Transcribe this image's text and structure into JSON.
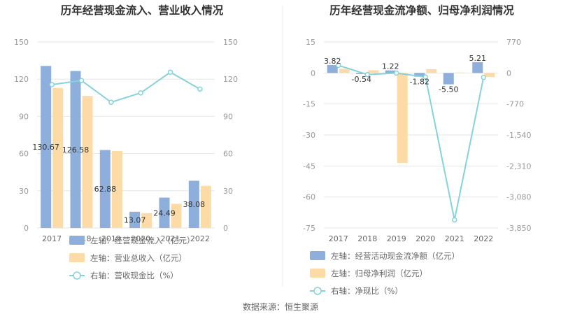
{
  "source": "数据来源：恒生聚源",
  "chart_data": [
    {
      "type": "bar",
      "title": "历年经营现金流入、营业收入情况",
      "categories": [
        "2017",
        "2018",
        "2019",
        "2020",
        "2021",
        "2022"
      ],
      "left_axis": {
        "ylim": [
          0,
          150
        ],
        "ticks": [
          "0",
          "30",
          "60",
          "90",
          "120",
          "150"
        ]
      },
      "right_axis": {
        "ylim": [
          0,
          150
        ],
        "ticks": [
          "0",
          "30",
          "60",
          "90",
          "120",
          "150"
        ]
      },
      "series": [
        {
          "name": "左轴：经营现金流入（亿元）",
          "kind": "bar",
          "axis": "left",
          "color": "#8eaedc",
          "values": [
            130.67,
            126.58,
            62.88,
            13.07,
            24.49,
            38.08
          ],
          "labels": [
            "130.67",
            "126.58",
            "62.88",
            "13.07",
            "24.49",
            "38.08"
          ]
        },
        {
          "name": "左轴：营业总收入（亿元）",
          "kind": "bar",
          "axis": "left",
          "color": "#fddba6",
          "values": [
            113,
            106.5,
            62,
            12,
            19.5,
            34
          ]
        },
        {
          "name": "右轴：营收现金比（%）",
          "kind": "line",
          "axis": "right",
          "color": "#86d2db",
          "values": [
            115.6,
            118.9,
            101.4,
            108.9,
            125.6,
            112.0
          ]
        }
      ]
    },
    {
      "type": "bar",
      "title": "历年经营现金流净额、归母净利润情况",
      "categories": [
        "2017",
        "2018",
        "2019",
        "2020",
        "2021",
        "2022"
      ],
      "left_axis": {
        "ylim": [
          -75,
          15
        ],
        "ticks": [
          "-75",
          "-60",
          "-45",
          "-30",
          "-15",
          "0",
          "15"
        ]
      },
      "right_axis": {
        "ylim": [
          -3850,
          770
        ],
        "ticks": [
          "-3,850",
          "-3,080",
          "-2,310",
          "-1,540",
          "-770",
          "0",
          "770"
        ]
      },
      "series": [
        {
          "name": "左轴：经营活动现金流净额（亿元）",
          "kind": "bar",
          "axis": "left",
          "color": "#8eaedc",
          "values": [
            3.82,
            -0.54,
            1.22,
            -1.82,
            -5.5,
            5.21
          ],
          "labels": [
            "3.82",
            "-0.54",
            "1.22",
            "-1.82",
            "-5.50",
            "5.21"
          ]
        },
        {
          "name": "左轴：归母净利润（亿元）",
          "kind": "bar",
          "axis": "left",
          "color": "#fddba6",
          "values": [
            2.0,
            1.3,
            -43.5,
            1.8,
            0.2,
            -2.0
          ]
        },
        {
          "name": "右轴：净现比（%）",
          "kind": "line",
          "axis": "right",
          "color": "#86d2db",
          "values": [
            190,
            -40,
            -3,
            -100,
            -3650,
            -110
          ]
        }
      ]
    }
  ]
}
